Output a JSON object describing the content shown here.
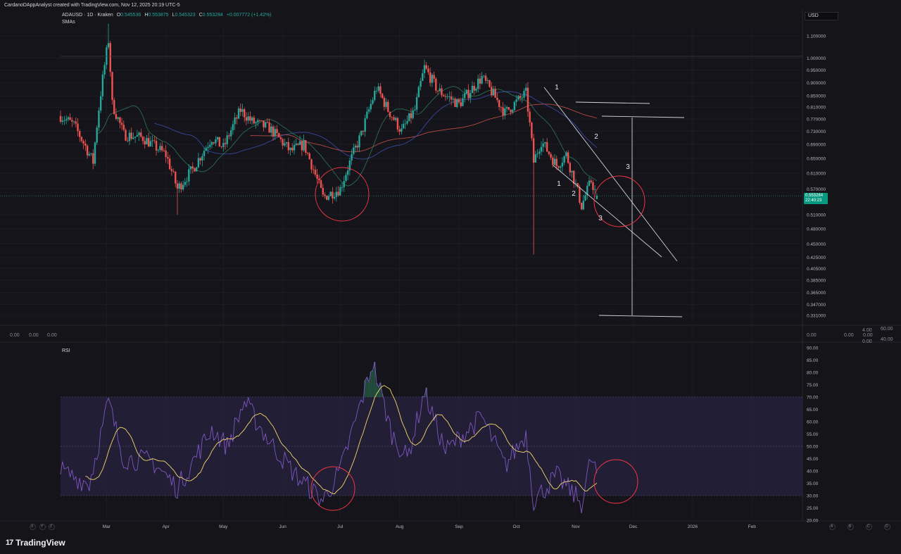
{
  "header": {
    "attribution": "CardanoDAppAnalyst created with TradingView.com, Nov 12, 2025 20:19 UTC-5",
    "symbol_line": "ADAUSD · 1D · Kraken",
    "ohlc": {
      "open_label": "O",
      "open": "0.545536",
      "high_label": "H",
      "high": "0.553875",
      "low_label": "L",
      "low": "0.545323",
      "close_label": "C",
      "close": "0.553284",
      "change": "+0.007772 (+1.42%)"
    },
    "indicator_label": "SMAs"
  },
  "currency_button": "USD",
  "last_price": {
    "value": "0.553284",
    "countdown": "22:40:23"
  },
  "rsi": {
    "label": "RSI"
  },
  "price_axis_labels": [
    "1.100000",
    "1.000000",
    "0.950000",
    "0.900000",
    "0.850000",
    "0.810000",
    "0.770000",
    "0.730000",
    "0.690000",
    "0.650000",
    "0.610000",
    "0.570000",
    "0.510000",
    "0.480000",
    "0.450000",
    "0.425000",
    "0.405000",
    "0.385000",
    "0.365000",
    "0.347000",
    "0.331000"
  ],
  "rsi_axis_labels": [
    "90.00",
    "85.00",
    "80.00",
    "75.00",
    "70.00",
    "65.00",
    "60.00",
    "55.00",
    "50.00",
    "45.00",
    "40.00",
    "35.00",
    "30.00",
    "25.00",
    "20.00"
  ],
  "separator_values": {
    "left": [
      "0.00",
      "0.00",
      "0.00"
    ],
    "right": [
      "0.00",
      "0.00",
      "0.00"
    ],
    "right_stack_top": [
      "4.00",
      "60.00"
    ],
    "right_stack_bottom": [
      "0.00",
      "40.00"
    ]
  },
  "time_axis_labels": [
    "Mar",
    "Apr",
    "May",
    "Jun",
    "Jul",
    "Aug",
    "Sep",
    "Oct",
    "Nov",
    "Dec",
    "2026",
    "Feb"
  ],
  "wave_labels": [
    "1",
    "2",
    "3",
    "1",
    "2",
    "3"
  ],
  "bottom_left_buttons": [
    "X",
    "Y",
    "Z"
  ],
  "bottom_right_buttons": [
    "A",
    "B",
    "C",
    "D"
  ],
  "brand": {
    "logo": "17",
    "name": "TradingView"
  },
  "colors": {
    "up": "#26a69a",
    "down": "#ef5350",
    "sma_fast": "#2e7d5b",
    "sma_mid": "#3f51b5",
    "sma_slow": "#d1544a",
    "rsi_line": "#7e57c2",
    "rsi_ma": "#f3d96a",
    "rsi_band": "#2a2444",
    "annotation_circle": "#f23645",
    "drawing": "#d1d4dc"
  },
  "chart_data": [
    {
      "type": "candlestick",
      "symbol": "ADAUSD",
      "interval": "1D",
      "exchange": "Kraken",
      "y_scale": "log",
      "ylim": [
        0.331,
        1.16
      ],
      "x_range": [
        "2025-02-05",
        "2026-02-20"
      ],
      "anchors": [
        {
          "date": "2025-02-05",
          "close": 0.78
        },
        {
          "date": "2025-02-12",
          "close": 0.75
        },
        {
          "date": "2025-02-22",
          "close": 0.64
        },
        {
          "date": "2025-03-02",
          "close": 1.08
        },
        {
          "date": "2025-03-04",
          "close": 0.82
        },
        {
          "date": "2025-03-10",
          "close": 0.72
        },
        {
          "date": "2025-03-20",
          "close": 0.71
        },
        {
          "date": "2025-04-01",
          "close": 0.66
        },
        {
          "date": "2025-04-07",
          "close": 0.57
        },
        {
          "date": "2025-04-15",
          "close": 0.62
        },
        {
          "date": "2025-04-25",
          "close": 0.71
        },
        {
          "date": "2025-05-01",
          "close": 0.68
        },
        {
          "date": "2025-05-10",
          "close": 0.8
        },
        {
          "date": "2025-05-16",
          "close": 0.76
        },
        {
          "date": "2025-05-25",
          "close": 0.74
        },
        {
          "date": "2025-06-05",
          "close": 0.67
        },
        {
          "date": "2025-06-12",
          "close": 0.69
        },
        {
          "date": "2025-06-22",
          "close": 0.55
        },
        {
          "date": "2025-07-01",
          "close": 0.57
        },
        {
          "date": "2025-07-12",
          "close": 0.72
        },
        {
          "date": "2025-07-20",
          "close": 0.88
        },
        {
          "date": "2025-07-26",
          "close": 0.8
        },
        {
          "date": "2025-08-02",
          "close": 0.73
        },
        {
          "date": "2025-08-09",
          "close": 0.8
        },
        {
          "date": "2025-08-14",
          "close": 0.96
        },
        {
          "date": "2025-08-21",
          "close": 0.87
        },
        {
          "date": "2025-09-01",
          "close": 0.82
        },
        {
          "date": "2025-09-13",
          "close": 0.92
        },
        {
          "date": "2025-09-25",
          "close": 0.79
        },
        {
          "date": "2025-10-06",
          "close": 0.86
        },
        {
          "date": "2025-10-10",
          "close": 0.64
        },
        {
          "date": "2025-10-14",
          "close": 0.7
        },
        {
          "date": "2025-10-22",
          "close": 0.63
        },
        {
          "date": "2025-10-27",
          "close": 0.66
        },
        {
          "date": "2025-11-04",
          "close": 0.53
        },
        {
          "date": "2025-11-09",
          "close": 0.59
        },
        {
          "date": "2025-11-12",
          "close": 0.553
        }
      ],
      "annotations": "hand-drawn falling wedge with wave counts 1-2-3, two red circles marking lows, horizontal target lines and vertical measure"
    },
    {
      "type": "line",
      "name": "RSI",
      "ylim": [
        20,
        90
      ],
      "bands": [
        30,
        70
      ],
      "midline": 50,
      "anchors": [
        {
          "date": "2025-02-05",
          "value": 40
        },
        {
          "date": "2025-02-20",
          "value": 35
        },
        {
          "date": "2025-03-02",
          "value": 68
        },
        {
          "date": "2025-03-10",
          "value": 45
        },
        {
          "date": "2025-03-25",
          "value": 44
        },
        {
          "date": "2025-04-07",
          "value": 33
        },
        {
          "date": "2025-04-25",
          "value": 57
        },
        {
          "date": "2025-05-03",
          "value": 50
        },
        {
          "date": "2025-05-12",
          "value": 68
        },
        {
          "date": "2025-05-25",
          "value": 52
        },
        {
          "date": "2025-06-08",
          "value": 38
        },
        {
          "date": "2025-06-22",
          "value": 28
        },
        {
          "date": "2025-07-01",
          "value": 40
        },
        {
          "date": "2025-07-12",
          "value": 68
        },
        {
          "date": "2025-07-18",
          "value": 84
        },
        {
          "date": "2025-07-28",
          "value": 55
        },
        {
          "date": "2025-08-05",
          "value": 45
        },
        {
          "date": "2025-08-14",
          "value": 72
        },
        {
          "date": "2025-08-25",
          "value": 48
        },
        {
          "date": "2025-09-13",
          "value": 62
        },
        {
          "date": "2025-09-25",
          "value": 42
        },
        {
          "date": "2025-10-06",
          "value": 55
        },
        {
          "date": "2025-10-10",
          "value": 28
        },
        {
          "date": "2025-10-22",
          "value": 38
        },
        {
          "date": "2025-11-04",
          "value": 27
        },
        {
          "date": "2025-11-09",
          "value": 45
        },
        {
          "date": "2025-11-12",
          "value": 39
        }
      ]
    }
  ]
}
